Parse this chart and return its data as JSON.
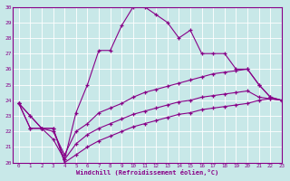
{
  "xlabel": "Windchill (Refroidissement éolien,°C)",
  "xlim": [
    -0.5,
    23
  ],
  "ylim": [
    20,
    30
  ],
  "xticks": [
    0,
    1,
    2,
    3,
    4,
    5,
    6,
    7,
    8,
    9,
    10,
    11,
    12,
    13,
    14,
    15,
    16,
    17,
    18,
    19,
    20,
    21,
    22,
    23
  ],
  "yticks": [
    20,
    21,
    22,
    23,
    24,
    25,
    26,
    27,
    28,
    29,
    30
  ],
  "background_color": "#c8e8e8",
  "grid_color": "#b0d8d8",
  "line_color": "#880088",
  "lines": [
    {
      "x": [
        0,
        1,
        2,
        3,
        4,
        5,
        6,
        7,
        8,
        9,
        10,
        11,
        12,
        13,
        14,
        15,
        16,
        17,
        18,
        19,
        20,
        21,
        22,
        23
      ],
      "y": [
        23.8,
        23.0,
        22.2,
        21.5,
        20.2,
        23.2,
        25.0,
        27.2,
        27.2,
        28.8,
        30.0,
        30.0,
        29.5,
        29.0,
        28.0,
        28.5,
        27.0,
        27.0,
        27.0,
        26.0,
        26.0,
        25.0,
        24.2,
        24.0
      ]
    },
    {
      "x": [
        0,
        1,
        2,
        3,
        4,
        5,
        6,
        7,
        8,
        9,
        10,
        11,
        12,
        13,
        14,
        15,
        16,
        17,
        18,
        19,
        20,
        21,
        22,
        23
      ],
      "y": [
        23.8,
        23.0,
        22.2,
        22.0,
        20.5,
        22.0,
        22.5,
        23.2,
        23.5,
        23.8,
        24.2,
        24.5,
        24.7,
        24.9,
        25.1,
        25.3,
        25.5,
        25.7,
        25.8,
        25.9,
        26.0,
        25.0,
        24.2,
        24.0
      ]
    },
    {
      "x": [
        0,
        1,
        2,
        3,
        4,
        5,
        6,
        7,
        8,
        9,
        10,
        11,
        12,
        13,
        14,
        15,
        16,
        17,
        18,
        19,
        20,
        21,
        22,
        23
      ],
      "y": [
        23.8,
        22.2,
        22.2,
        22.2,
        20.2,
        21.2,
        21.8,
        22.2,
        22.5,
        22.8,
        23.1,
        23.3,
        23.5,
        23.7,
        23.9,
        24.0,
        24.2,
        24.3,
        24.4,
        24.5,
        24.6,
        24.2,
        24.1,
        24.0
      ]
    },
    {
      "x": [
        0,
        1,
        2,
        3,
        4,
        5,
        6,
        7,
        8,
        9,
        10,
        11,
        12,
        13,
        14,
        15,
        16,
        17,
        18,
        19,
        20,
        21,
        22,
        23
      ],
      "y": [
        23.8,
        22.2,
        22.2,
        22.2,
        20.0,
        20.5,
        21.0,
        21.4,
        21.7,
        22.0,
        22.3,
        22.5,
        22.7,
        22.9,
        23.1,
        23.2,
        23.4,
        23.5,
        23.6,
        23.7,
        23.8,
        24.0,
        24.1,
        24.0
      ]
    }
  ]
}
